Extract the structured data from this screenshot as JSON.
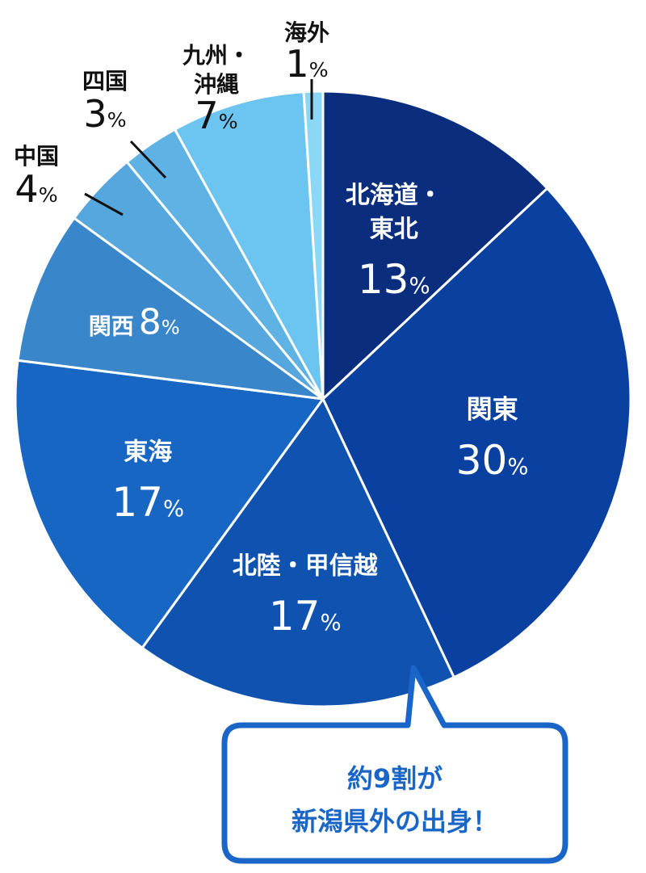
{
  "chart_data": {
    "type": "pie",
    "categories": [
      "北海道・東北",
      "関東",
      "北陸・甲信越",
      "東海",
      "関西",
      "中国",
      "四国",
      "九州・沖縄",
      "海外"
    ],
    "values": [
      13,
      30,
      17,
      17,
      8,
      4,
      3,
      7,
      1
    ],
    "unit": "%",
    "colors": [
      "#0a2d7e",
      "#0a41a0",
      "#0f52b0",
      "#1866c4",
      "#3a86cb",
      "#56a7dd",
      "#5eb2e4",
      "#6cc5f0",
      "#8ad8f6"
    ],
    "labels": [
      {
        "name_lines": [
          "北海道・",
          "東北"
        ],
        "value": "13"
      },
      {
        "name_lines": [
          "関東"
        ],
        "value": "30"
      },
      {
        "name_lines": [
          "北陸・甲信越"
        ],
        "value": "17"
      },
      {
        "name_lines": [
          "東海"
        ],
        "value": "17"
      },
      {
        "name_lines": [
          "関西"
        ],
        "value": "8"
      },
      {
        "name_lines": [
          "中国"
        ],
        "value": "4"
      },
      {
        "name_lines": [
          "四国"
        ],
        "value": "3"
      },
      {
        "name_lines": [
          "九州・",
          "沖縄"
        ],
        "value": "7"
      },
      {
        "name_lines": [
          "海外"
        ],
        "value": "1"
      }
    ],
    "percent_sign": "%"
  },
  "callout": {
    "line1": "約9割が",
    "line2": "新潟県外の出身！",
    "color": "#1a66c8"
  }
}
